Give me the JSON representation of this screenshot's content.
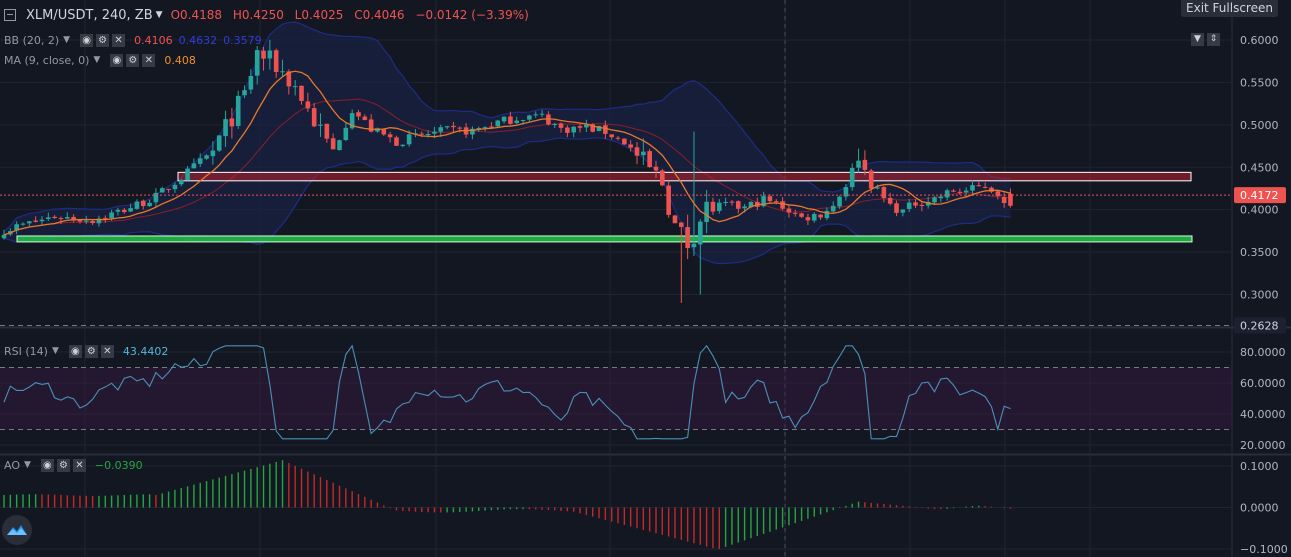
{
  "header": {
    "symbol": "XLM/USDT, 240, ZB",
    "open": "O0.4188",
    "high": "H0.4250",
    "low": "L0.4025",
    "close": "C0.4046",
    "change": "−0.0142 (−3.39%)",
    "exit_fullscreen": "Exit Fullscreen"
  },
  "indicators": {
    "bb": {
      "name": "BB (20, 2)",
      "basis": "0.4106",
      "upper": "0.4632",
      "lower": "0.3579"
    },
    "ma": {
      "name": "MA (9, close, 0)",
      "value": "0.408"
    },
    "rsi": {
      "name": "RSI (14)",
      "value": "43.4402"
    },
    "ao": {
      "name": "AO",
      "value": "−0.0390"
    }
  },
  "colors": {
    "background": "#131722",
    "up": "#26a69a",
    "down": "#ef5350",
    "bb_band": "#1e2c86",
    "ma": "#e8782a",
    "rsi_line": "#4a8fb8",
    "resistance_zone": "#b9202e",
    "support_zone": "#22c24a"
  },
  "chart_data": [
    {
      "type": "candlestick",
      "title": "XLM/USDT, 240, ZB",
      "ylim": [
        0.27,
        0.61
      ],
      "y_ticks": [
        "0.6000",
        "0.5500",
        "0.5000",
        "0.4500",
        "0.4000",
        "0.3500",
        "0.3000"
      ],
      "price_labels": {
        "last": "0.4172",
        "last_value": 0.4172,
        "low": "0.2628",
        "low_value": 0.2628
      },
      "zones": [
        {
          "type": "resistance",
          "from": 0.434,
          "to": 0.444
        },
        {
          "type": "support",
          "from": 0.362,
          "to": 0.369
        }
      ],
      "anchors": [
        [
          0,
          0.376
        ],
        [
          8,
          0.392
        ],
        [
          14,
          0.388
        ],
        [
          19,
          0.4
        ],
        [
          24,
          0.415
        ],
        [
          28,
          0.438
        ],
        [
          33,
          0.468
        ],
        [
          36,
          0.51
        ],
        [
          38,
          0.535
        ],
        [
          40,
          0.585
        ],
        [
          43,
          0.57
        ],
        [
          46,
          0.545
        ],
        [
          49,
          0.505
        ],
        [
          52,
          0.47
        ],
        [
          55,
          0.518
        ],
        [
          58,
          0.495
        ],
        [
          62,
          0.48
        ],
        [
          66,
          0.488
        ],
        [
          70,
          0.493
        ],
        [
          74,
          0.493
        ],
        [
          78,
          0.503
        ],
        [
          82,
          0.51
        ],
        [
          85,
          0.51
        ],
        [
          88,
          0.495
        ],
        [
          92,
          0.497
        ],
        [
          95,
          0.492
        ],
        [
          98,
          0.48
        ],
        [
          101,
          0.455
        ],
        [
          104,
          0.432
        ],
        [
          106,
          0.38
        ],
        [
          108,
          0.36
        ],
        [
          111,
          0.402
        ],
        [
          114,
          0.405
        ],
        [
          117,
          0.402
        ],
        [
          120,
          0.412
        ],
        [
          123,
          0.404
        ],
        [
          126,
          0.39
        ],
        [
          129,
          0.395
        ],
        [
          131,
          0.405
        ],
        [
          133,
          0.43
        ],
        [
          135,
          0.462
        ],
        [
          137,
          0.43
        ],
        [
          140,
          0.405
        ],
        [
          142,
          0.398
        ],
        [
          144,
          0.408
        ],
        [
          147,
          0.413
        ],
        [
          150,
          0.422
        ],
        [
          152,
          0.422
        ],
        [
          155,
          0.428
        ],
        [
          157,
          0.42
        ],
        [
          158,
          0.405
        ],
        [
          159,
          0.417
        ]
      ]
    },
    {
      "type": "line",
      "title": "RSI (14)",
      "ylim": [
        18,
        86
      ],
      "y_ticks": [
        "80.0000",
        "60.0000",
        "40.0000",
        "20.0000"
      ],
      "bands": [
        30,
        70
      ],
      "last_value": 43.4402
    },
    {
      "type": "bar",
      "title": "AO",
      "ylim": [
        -0.105,
        0.115
      ],
      "y_ticks": [
        "0.1000",
        "0.0000",
        "−0.1000"
      ],
      "last_value": -0.039
    }
  ]
}
